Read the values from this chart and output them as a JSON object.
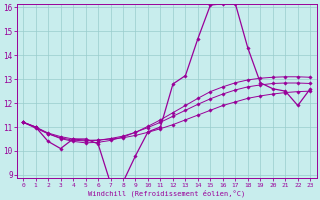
{
  "xlabel": "Windchill (Refroidissement éolien,°C)",
  "ylabel": "",
  "bg_color": "#c8eded",
  "line_color": "#990099",
  "grid_color": "#99cccc",
  "xlim": [
    -0.5,
    23.5
  ],
  "ylim": [
    9,
    16
  ],
  "yticks": [
    9,
    10,
    11,
    12,
    13,
    14,
    15,
    16
  ],
  "xticks": [
    0,
    1,
    2,
    3,
    4,
    5,
    6,
    7,
    8,
    9,
    10,
    11,
    12,
    13,
    14,
    15,
    16,
    17,
    18,
    19,
    20,
    21,
    22,
    23
  ],
  "x": [
    0,
    1,
    2,
    3,
    4,
    5,
    6,
    7,
    8,
    9,
    10,
    11,
    12,
    13,
    14,
    15,
    16,
    17,
    18,
    19,
    20,
    21,
    22,
    23
  ],
  "y_jagged": [
    11.2,
    11.0,
    10.4,
    10.1,
    10.5,
    10.5,
    10.3,
    8.65,
    8.7,
    9.8,
    10.8,
    11.0,
    12.8,
    13.15,
    14.7,
    16.1,
    16.15,
    16.15,
    14.3,
    12.85,
    12.6,
    12.5,
    11.9,
    12.6
  ],
  "y_smooth1": [
    11.2,
    11.0,
    10.75,
    10.6,
    10.5,
    10.45,
    10.45,
    10.5,
    10.55,
    10.65,
    10.78,
    10.93,
    11.1,
    11.3,
    11.5,
    11.7,
    11.9,
    12.05,
    12.2,
    12.3,
    12.38,
    12.44,
    12.48,
    12.5
  ],
  "y_smooth2": [
    11.2,
    11.0,
    10.72,
    10.55,
    10.45,
    10.42,
    10.45,
    10.52,
    10.62,
    10.78,
    10.98,
    11.2,
    11.45,
    11.7,
    11.95,
    12.18,
    12.38,
    12.55,
    12.68,
    12.76,
    12.82,
    12.84,
    12.84,
    12.82
  ],
  "y_smooth3": [
    11.2,
    10.95,
    10.72,
    10.52,
    10.4,
    10.34,
    10.36,
    10.44,
    10.58,
    10.78,
    11.03,
    11.3,
    11.6,
    11.9,
    12.2,
    12.48,
    12.68,
    12.85,
    12.97,
    13.04,
    13.08,
    13.1,
    13.1,
    13.08
  ]
}
